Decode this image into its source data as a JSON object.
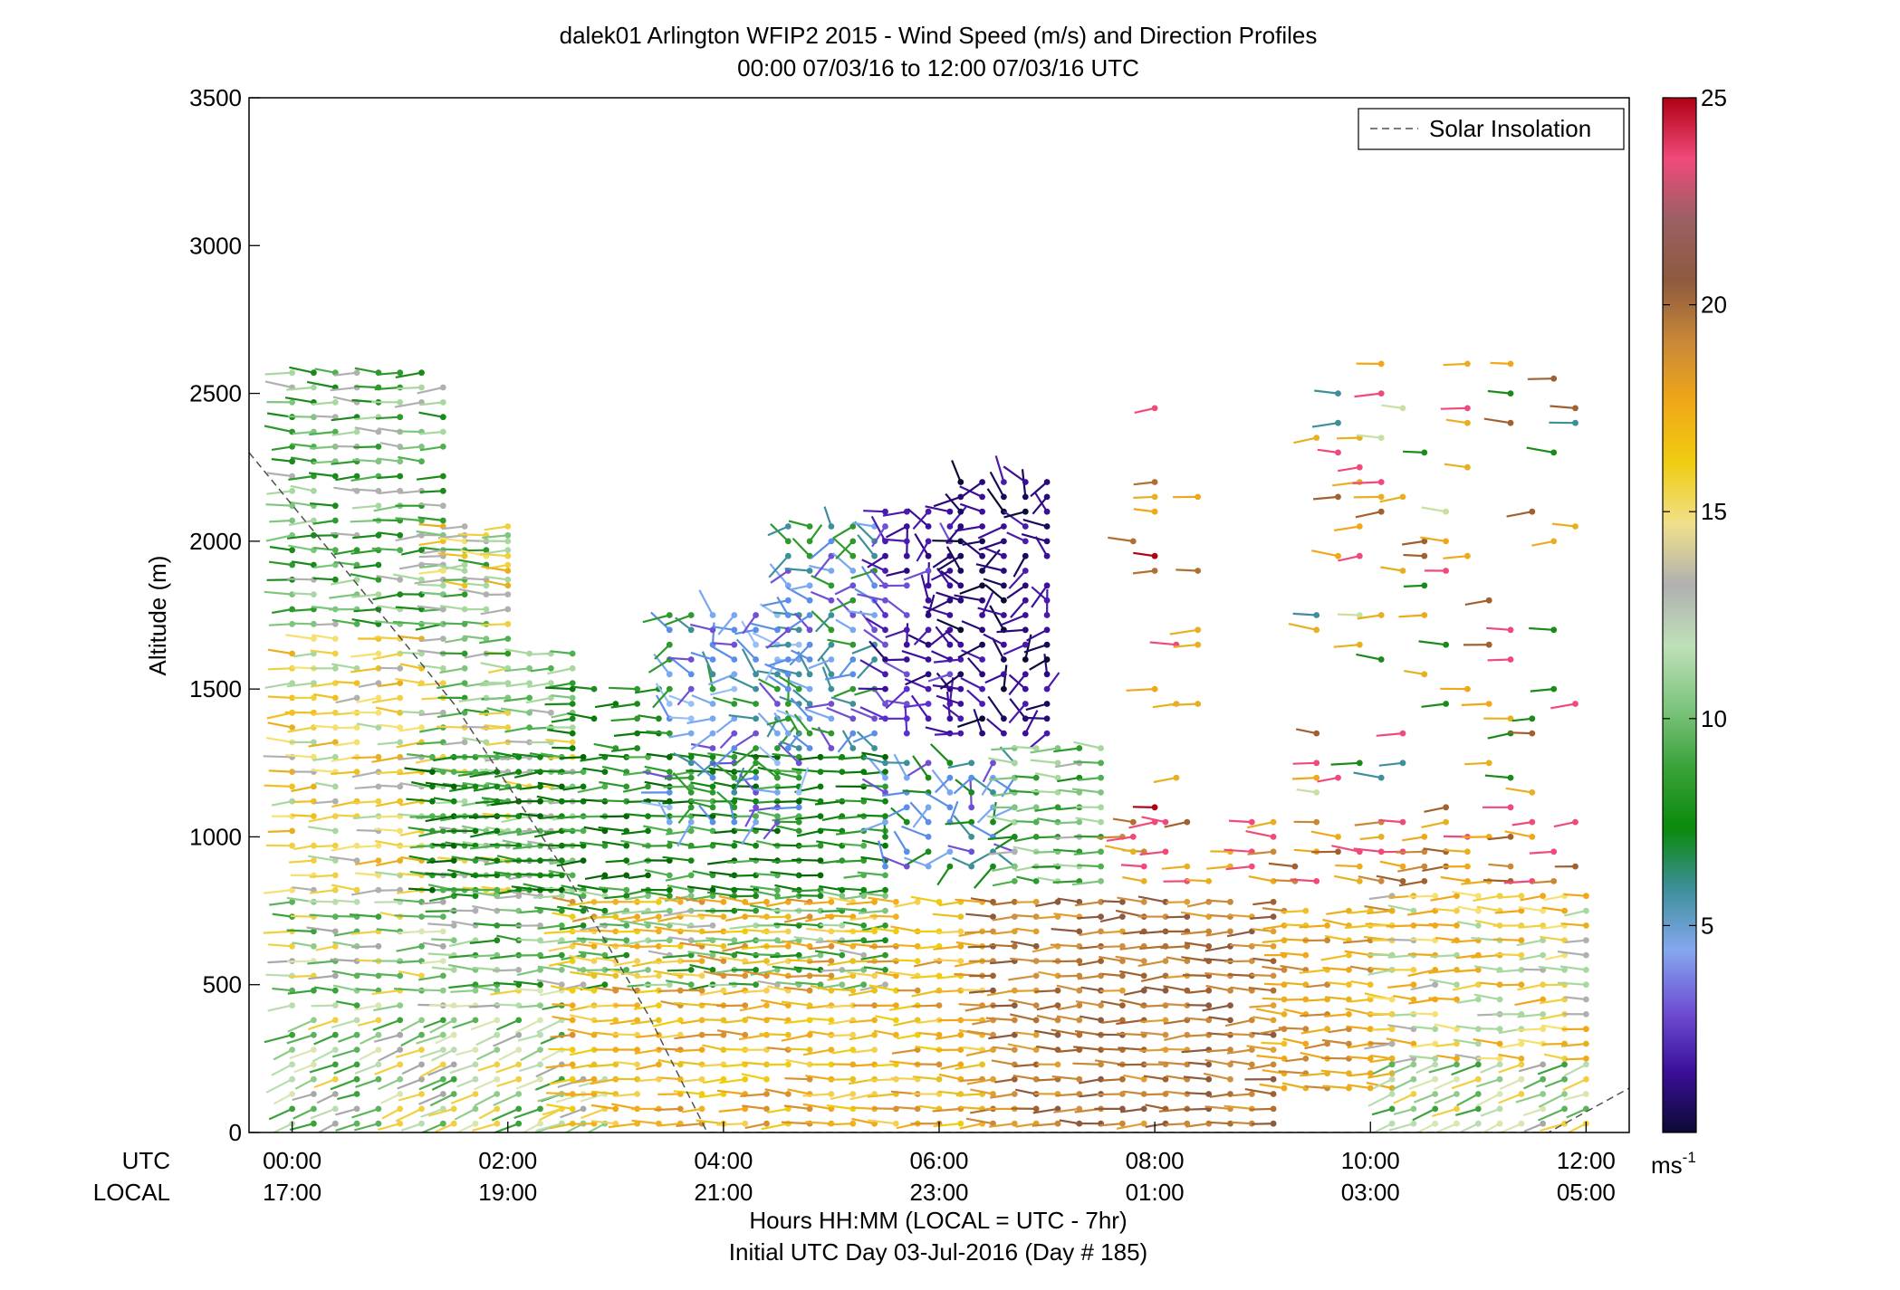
{
  "chart_data": {
    "type": "wind-profile",
    "title": "dalek01 Arlington WFIP2 2015 - Wind Speed (m/s) and Direction Profiles",
    "subtitle": "00:00 07/03/16 to 12:00 07/03/16  UTC",
    "ylabel": "Altitude (m)",
    "ylim": [
      0,
      3500
    ],
    "yticks": [
      "0",
      "500",
      "1000",
      "1500",
      "2000",
      "2500",
      "3000",
      "3500"
    ],
    "xlim_hours": [
      -0.4,
      12.4
    ],
    "x_ticks_utc": [
      "00:00",
      "02:00",
      "04:00",
      "06:00",
      "08:00",
      "10:00",
      "12:00"
    ],
    "x_ticks_local": [
      "17:00",
      "19:00",
      "21:00",
      "23:00",
      "01:00",
      "03:00",
      "05:00"
    ],
    "x_row_label_utc": "UTC",
    "x_row_label_local": "LOCAL",
    "xlabel_line1": "Hours HH:MM  (LOCAL = UTC - 7hr)",
    "xlabel_line2": "Initial UTC Day 03-Jul-2016 (Day # 185)",
    "legend": {
      "placement": "top-right",
      "entry": "Solar Insolation"
    },
    "colorbar": {
      "range": [
        0,
        25
      ],
      "ticks": [
        "5",
        "10",
        "15",
        "20",
        "25"
      ],
      "unit_base": "ms",
      "unit_exp": "-1",
      "colors": [
        "#0b0a33",
        "#3b0f9a",
        "#6f4fd4",
        "#84a8ee",
        "#3e8f9a",
        "#0a8a0a",
        "#3aa23a",
        "#7fc57f",
        "#bfe0b8",
        "#b0b0b0",
        "#f0e08a",
        "#f0cc10",
        "#f0a818",
        "#c88838",
        "#8e5a3e",
        "#9a6064",
        "#f04a7a",
        "#b00014"
      ]
    },
    "solar_insolation": {
      "style": "dashed",
      "points": [
        [
          -0.4,
          2300
        ],
        [
          0.5,
          1900
        ],
        [
          1.5,
          1450
        ],
        [
          2.5,
          900
        ],
        [
          3.3,
          400
        ],
        [
          3.85,
          0
        ],
        [
          11.65,
          0
        ],
        [
          12.4,
          150
        ]
      ]
    },
    "segments": [
      {
        "t0": 0.0,
        "t1": 1.5,
        "h0": 30,
        "h1": 800,
        "pat": "lowGreen"
      },
      {
        "t0": 1.5,
        "t1": 2.5,
        "h0": 30,
        "h1": 480,
        "pat": "lowGreen"
      },
      {
        "t0": 2.5,
        "t1": 3.0,
        "h0": 30,
        "h1": 200,
        "pat": "lowGreen"
      },
      {
        "t0": 0.0,
        "t1": 1.3,
        "h0": 820,
        "h1": 1700,
        "pat": "yellow"
      },
      {
        "t0": 0.0,
        "t1": 1.5,
        "h0": 1720,
        "h1": 2600,
        "pat": "green"
      },
      {
        "t0": 1.4,
        "t1": 2.0,
        "h0": 820,
        "h1": 2050,
        "pat": "mixGreen"
      },
      {
        "t0": 1.4,
        "t1": 2.0,
        "h0": 1850,
        "h1": 2050,
        "pat": "yellow"
      },
      {
        "t0": 2.0,
        "t1": 2.6,
        "h0": 820,
        "h1": 1650,
        "pat": "mixGreen"
      },
      {
        "t0": 1.3,
        "t1": 5.5,
        "h0": 820,
        "h1": 1280,
        "pat": "darkGreen"
      },
      {
        "t0": 1.5,
        "t1": 5.5,
        "h0": 500,
        "h1": 800,
        "pat": "green"
      },
      {
        "t0": 2.6,
        "t1": 3.4,
        "h0": 1300,
        "h1": 1500,
        "pat": "greenSparse"
      },
      {
        "t0": 3.5,
        "t1": 4.7,
        "h0": 1050,
        "h1": 1750,
        "pat": "blue"
      },
      {
        "t0": 4.6,
        "t1": 5.5,
        "h0": 1300,
        "h1": 2050,
        "pat": "blueGreen"
      },
      {
        "t0": 5.5,
        "t1": 6.7,
        "h0": 900,
        "h1": 1250,
        "pat": "blueMix"
      },
      {
        "t0": 5.5,
        "t1": 6.2,
        "h0": 1350,
        "h1": 2100,
        "pat": "purple"
      },
      {
        "t0": 6.2,
        "t1": 7.1,
        "h0": 1350,
        "h1": 2200,
        "pat": "darkNavy"
      },
      {
        "t0": 6.7,
        "t1": 7.5,
        "h0": 850,
        "h1": 1300,
        "pat": "green"
      },
      {
        "t0": 2.6,
        "t1": 6.5,
        "h0": 30,
        "h1": 780,
        "pat": "orangeYellow"
      },
      {
        "t0": 6.5,
        "t1": 9.2,
        "h0": 30,
        "h1": 800,
        "pat": "brown"
      },
      {
        "t0": 9.2,
        "t1": 10.2,
        "h0": 150,
        "h1": 760,
        "pat": "orange"
      },
      {
        "t0": 10.2,
        "t1": 12.0,
        "h0": 250,
        "h1": 800,
        "pat": "mixYellow"
      },
      {
        "t0": 10.2,
        "t1": 12.0,
        "h0": 30,
        "h1": 230,
        "pat": "lowGreen"
      },
      {
        "t0": 7.7,
        "t1": 12.0,
        "h0": 850,
        "h1": 1050,
        "pat": "orangeSparse"
      },
      {
        "t0": 7.8,
        "t1": 8.5,
        "h0": 950,
        "h1": 2450,
        "pat": "upperSparse"
      },
      {
        "t0": 9.5,
        "t1": 12.0,
        "h0": 1100,
        "h1": 2620,
        "pat": "upperSparse2"
      }
    ]
  }
}
